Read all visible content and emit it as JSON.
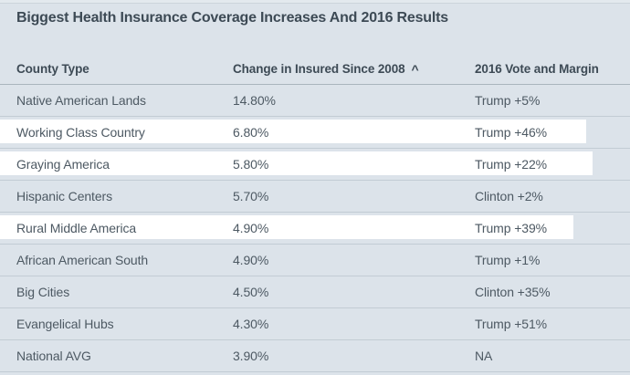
{
  "title": "Biggest Health Insurance Coverage Increases And 2016 Results",
  "chart_data": {
    "type": "table",
    "title": "Biggest Health Insurance Coverage Increases And 2016 Results",
    "columns": [
      "County Type",
      "Change in Insured Since 2008",
      "2016 Vote and Margin"
    ],
    "sort_icon": "^",
    "sorted_column": "Change in Insured Since 2008",
    "rows": [
      {
        "county_type": "Native American Lands",
        "change_in_insured": "14.80%",
        "vote_margin": "Trump +5%",
        "highlighted": false
      },
      {
        "county_type": "Working Class Country",
        "change_in_insured": "6.80%",
        "vote_margin": "Trump +46%",
        "highlighted": true
      },
      {
        "county_type": "Graying America",
        "change_in_insured": "5.80%",
        "vote_margin": "Trump +22%",
        "highlighted": true
      },
      {
        "county_type": "Hispanic Centers",
        "change_in_insured": "5.70%",
        "vote_margin": "Clinton +2%",
        "highlighted": false
      },
      {
        "county_type": "Rural Middle America",
        "change_in_insured": "4.90%",
        "vote_margin": "Trump +39%",
        "highlighted": true
      },
      {
        "county_type": "African American South",
        "change_in_insured": "4.90%",
        "vote_margin": "Trump +1%",
        "highlighted": false
      },
      {
        "county_type": "Big Cities",
        "change_in_insured": "4.50%",
        "vote_margin": "Clinton +35%",
        "highlighted": false
      },
      {
        "county_type": "Evangelical Hubs",
        "change_in_insured": "4.30%",
        "vote_margin": "Trump +51%",
        "highlighted": false
      },
      {
        "county_type": "National AVG",
        "change_in_insured": "3.90%",
        "vote_margin": "NA",
        "highlighted": false
      }
    ]
  },
  "colors": {
    "background": "#dce3ea",
    "highlight": "#ffffff",
    "title_text": "#3d4a55",
    "header_text": "#3d4a55",
    "body_text": "#4d5963",
    "header_border": "#a9b5bd",
    "row_border": "#c2ccd4",
    "top_strip": "#e3e9ee",
    "top_line": "#ccd5db"
  }
}
